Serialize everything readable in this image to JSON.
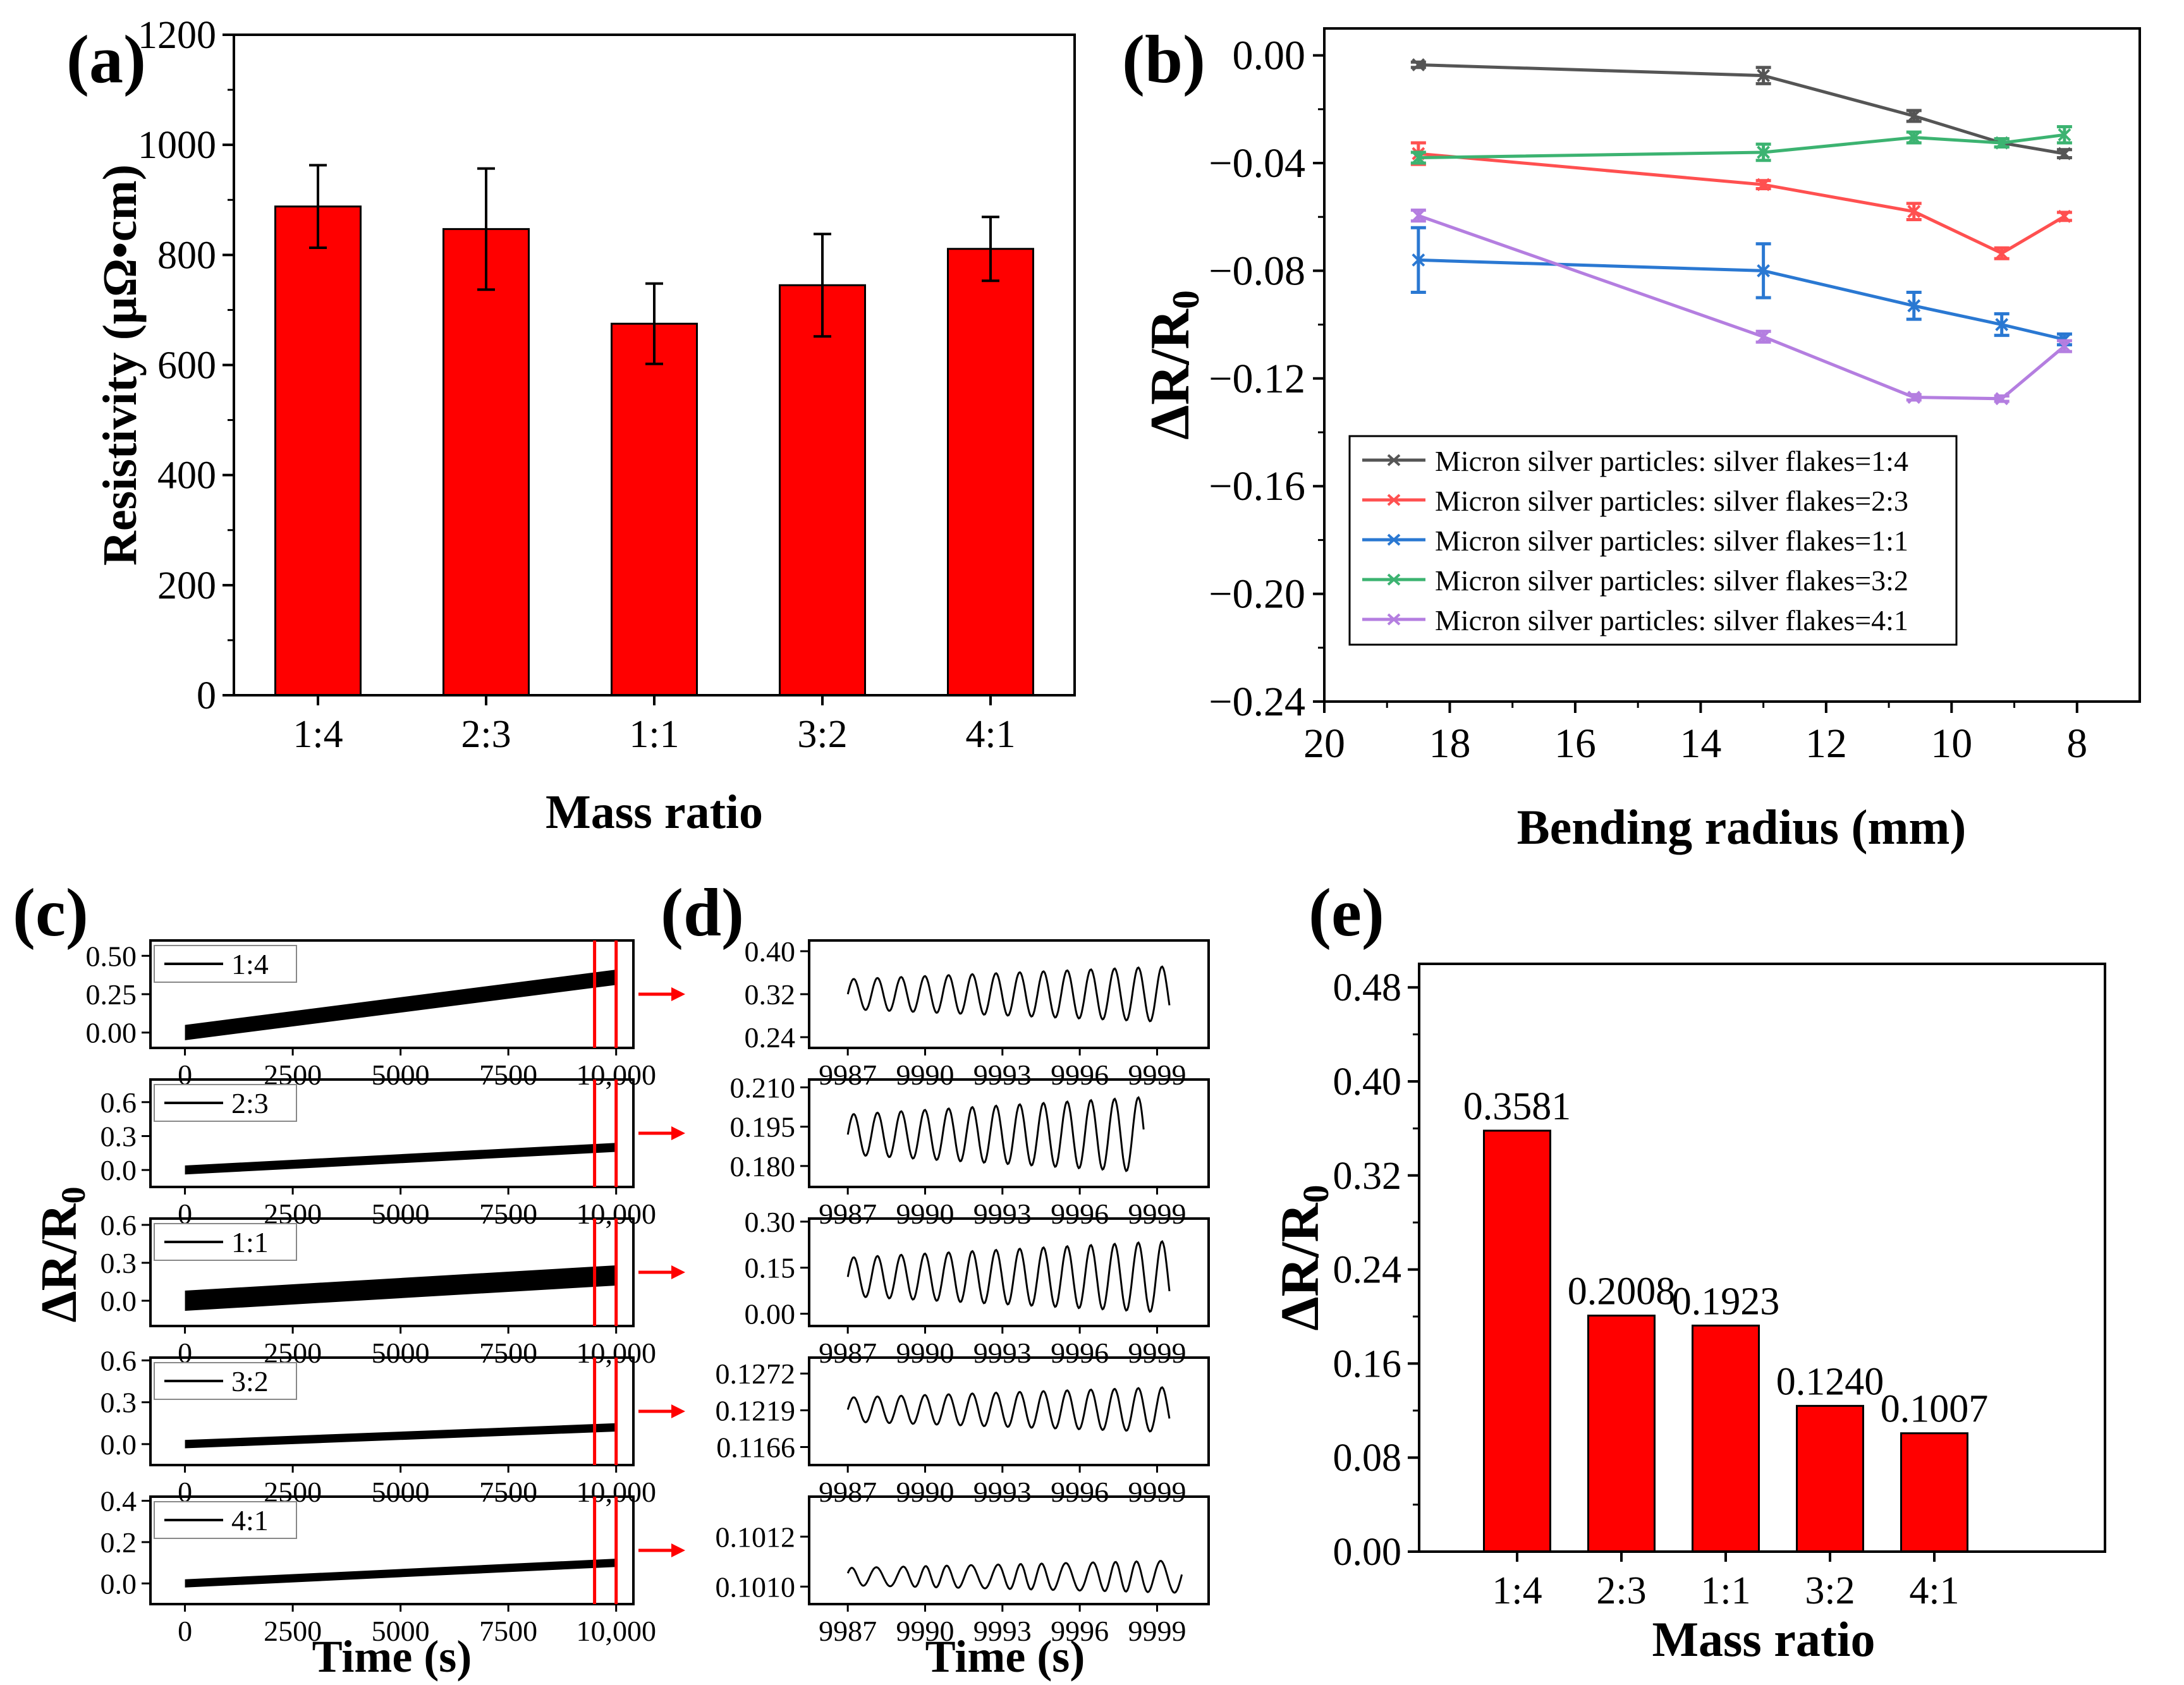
{
  "chart_data": [
    {
      "panel": "(a)",
      "type": "bar",
      "xlabel": "Mass ratio",
      "ylabel": "Resistivity (μΩ•cm)",
      "ylim": [
        0,
        1200
      ],
      "yticks": [
        0,
        200,
        400,
        600,
        800,
        1000,
        1200
      ],
      "categories": [
        "1:4",
        "2:3",
        "1:1",
        "3:2",
        "4:1"
      ],
      "values": [
        888,
        847,
        675,
        745,
        811
      ],
      "errors": [
        75,
        110,
        73,
        93,
        58
      ],
      "bar_color": "#ff0000"
    },
    {
      "panel": "(b)",
      "type": "line",
      "xlabel": "Bending radius (mm)",
      "ylabel": "ΔR/R0",
      "xlim": [
        20,
        7
      ],
      "ylim": [
        -0.24,
        0.01
      ],
      "xticks": [
        20,
        18,
        16,
        14,
        12,
        10,
        8
      ],
      "yticks": [
        0.0,
        -0.04,
        -0.08,
        -0.12,
        -0.16,
        -0.2,
        -0.24
      ],
      "ytick_labels": [
        "0.00",
        "−0.04",
        "−0.08",
        "−0.12",
        "−0.16",
        "−0.20",
        "−0.24"
      ],
      "x": [
        18.5,
        13.0,
        10.6,
        9.2,
        8.2
      ],
      "legend_loc": "lower-left",
      "series": [
        {
          "name": "Micron silver particles: silver flakes=1:4",
          "color": "#555555",
          "values": [
            -0.0035,
            -0.0075,
            -0.0225,
            -0.0325,
            -0.0365
          ],
          "errors": [
            0.001,
            0.003,
            0.002,
            0.0015,
            0.0015
          ]
        },
        {
          "name": "Micron silver particles: silver flakes=2:3",
          "color": "#ff5050",
          "values": [
            -0.0365,
            -0.048,
            -0.058,
            -0.0735,
            -0.0598
          ],
          "errors": [
            0.004,
            0.0015,
            0.003,
            0.002,
            0.0015
          ]
        },
        {
          "name": "Micron silver particles: silver flakes=1:1",
          "color": "#2a78d2",
          "values": [
            -0.076,
            -0.08,
            -0.093,
            -0.1,
            -0.1055
          ],
          "errors": [
            0.012,
            0.01,
            0.005,
            0.004,
            0.002
          ]
        },
        {
          "name": "Micron silver particles: silver flakes=3:2",
          "color": "#3cb371",
          "values": [
            -0.038,
            -0.036,
            -0.0305,
            -0.0325,
            -0.0295
          ],
          "errors": [
            0.002,
            0.003,
            0.002,
            0.0015,
            0.003
          ]
        },
        {
          "name": "Micron silver particles: silver flakes=4:1",
          "color": "#b47ee0",
          "values": [
            -0.0595,
            -0.1045,
            -0.127,
            -0.1275,
            -0.108
          ],
          "errors": [
            0.002,
            0.002,
            0.001,
            0.001,
            0.002
          ]
        }
      ]
    },
    {
      "panel": "(c)",
      "type": "line",
      "xlabel": "Time (s)",
      "ylabel": "ΔR/R0",
      "xlim": [
        -800,
        10400
      ],
      "xticks": [
        0,
        2500,
        5000,
        7500,
        10000
      ],
      "xtick_labels": [
        "0",
        "2500",
        "5000",
        "7500",
        "10,000"
      ],
      "markers": [
        9500,
        10000
      ],
      "series": [
        {
          "name": "1:4",
          "ylim": [
            -0.1,
            0.6
          ],
          "yticks": [
            0.0,
            0.25,
            0.5
          ],
          "ytick_labels": [
            "0.00",
            "0.25",
            "0.50"
          ],
          "start": 0.0,
          "end": 0.36,
          "band": 0.1
        },
        {
          "name": "2:3",
          "ylim": [
            -0.15,
            0.8
          ],
          "yticks": [
            0.0,
            0.3,
            0.6
          ],
          "ytick_labels": [
            "0.0",
            "0.3",
            "0.6"
          ],
          "start": 0.0,
          "end": 0.2,
          "band": 0.08
        },
        {
          "name": "1:1",
          "ylim": [
            -0.2,
            0.65
          ],
          "yticks": [
            0.0,
            0.3,
            0.6
          ],
          "ytick_labels": [
            "0.0",
            "0.3",
            "0.6"
          ],
          "start": 0.0,
          "end": 0.2,
          "band": 0.16
        },
        {
          "name": "3:2",
          "ylim": [
            -0.15,
            0.62
          ],
          "yticks": [
            0.0,
            0.3,
            0.6
          ],
          "ytick_labels": [
            "0.0",
            "0.3",
            "0.6"
          ],
          "start": 0.0,
          "end": 0.12,
          "band": 0.06
        },
        {
          "name": "4:1",
          "ylim": [
            -0.1,
            0.42
          ],
          "yticks": [
            0.0,
            0.2,
            0.4
          ],
          "ytick_labels": [
            "0.0",
            "0.2",
            "0.4"
          ],
          "start": 0.0,
          "end": 0.1,
          "band": 0.04
        }
      ]
    },
    {
      "panel": "(d)",
      "type": "line",
      "xlabel": "Time (s)",
      "xlim": [
        9985.5,
        10001
      ],
      "xticks": [
        9987,
        9990,
        9993,
        9996,
        9999
      ],
      "xtick_labels": [
        "9987",
        "9990",
        "9993",
        "9996",
        "9999"
      ],
      "series": [
        {
          "name": "1:4",
          "ylim": [
            0.22,
            0.42
          ],
          "yticks": [
            0.24,
            0.32,
            0.4
          ],
          "ytick_labels": [
            "0.24",
            "0.32",
            "0.40"
          ],
          "t0": 9987.0,
          "t1": 9999.5,
          "mid": 0.32,
          "amp": 0.04,
          "period": 0.92
        },
        {
          "name": "2:3",
          "ylim": [
            0.172,
            0.213
          ],
          "yticks": [
            0.18,
            0.195,
            0.21
          ],
          "ytick_labels": [
            "0.180",
            "0.195",
            "0.210"
          ],
          "t0": 9987.0,
          "t1": 9998.5,
          "mid": 0.192,
          "amp": 0.011,
          "period": 0.92
        },
        {
          "name": "1:1",
          "ylim": [
            -0.04,
            0.31
          ],
          "yticks": [
            0.0,
            0.15,
            0.3
          ],
          "ytick_labels": [
            "0.00",
            "0.15",
            "0.30"
          ],
          "t0": 9987.0,
          "t1": 9999.5,
          "mid": 0.12,
          "amp": 0.09,
          "period": 0.92
        },
        {
          "name": "3:2",
          "ylim": [
            0.114,
            0.1295
          ],
          "yticks": [
            0.1166,
            0.1219,
            0.1272
          ],
          "ytick_labels": [
            "0.1166",
            "0.1219",
            "0.1272"
          ],
          "t0": 9987.0,
          "t1": 9999.5,
          "mid": 0.122,
          "amp": 0.0025,
          "period": 0.92
        },
        {
          "name": "4:1",
          "ylim": [
            0.10093,
            0.10136
          ],
          "yticks": [
            0.101,
            0.1012
          ],
          "ytick_labels": [
            "0.1010",
            "0.1012"
          ],
          "t0": 9987.0,
          "t1": 10000.0,
          "mid": 0.10104,
          "amp": 5e-05,
          "period": 0.92
        }
      ]
    },
    {
      "panel": "(e)",
      "type": "bar",
      "xlabel": "Mass ratio",
      "ylabel": "ΔR/R0",
      "ylim": [
        0,
        0.5
      ],
      "yticks": [
        0.0,
        0.08,
        0.16,
        0.24,
        0.32,
        0.4,
        0.48
      ],
      "ytick_labels": [
        "0.00",
        "0.08",
        "0.16",
        "0.24",
        "0.32",
        "0.40",
        "0.48"
      ],
      "categories": [
        "1:4",
        "2:3",
        "1:1",
        "3:2",
        "4:1"
      ],
      "values": [
        0.3581,
        0.2008,
        0.1923,
        0.124,
        0.1007
      ],
      "data_labels": [
        "0.3581",
        "0.2008",
        "0.1923",
        "0.1240",
        "0.1007"
      ],
      "bar_color": "#ff0000"
    }
  ]
}
